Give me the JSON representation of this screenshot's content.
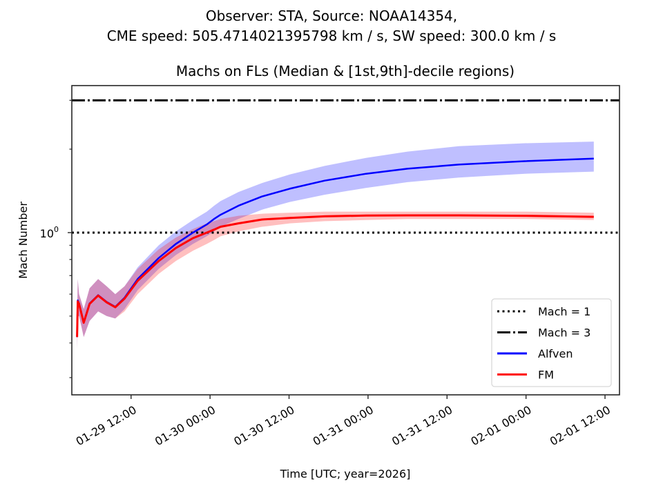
{
  "figure": {
    "suptitle_line1": "Observer: STA, Source: NOAA14354,",
    "suptitle_line2": "CME speed: 505.4714021395798 km / s, SW speed: 300.0 km / s"
  },
  "chart_data": {
    "type": "line",
    "title": "Machs on FLs (Median & [1st,9th]-decile regions)",
    "xlabel": "Time [UTC; year=2026]",
    "ylabel": "Mach Number",
    "yscale": "log",
    "x_unit": "hours since 2026-01-29 12:00",
    "xlim": [
      -9.0,
      74.2
    ],
    "ylim": [
      0.26,
      3.39
    ],
    "x_ticks": [
      {
        "value": 0,
        "label": "01-29 12:00"
      },
      {
        "value": 12,
        "label": "01-30 00:00"
      },
      {
        "value": 24,
        "label": "01-30 12:00"
      },
      {
        "value": 36,
        "label": "01-31 00:00"
      },
      {
        "value": 48,
        "label": "01-31 12:00"
      },
      {
        "value": 60,
        "label": "02-01 00:00"
      },
      {
        "value": 72,
        "label": "02-01 12:00"
      }
    ],
    "y_major_ticks": [
      {
        "value": 1,
        "label_base": "10",
        "label_exp": "0"
      }
    ],
    "y_minor_ticks": [
      0.3,
      0.4,
      0.5,
      0.6,
      0.7,
      0.8,
      0.9,
      2,
      3
    ],
    "reference_lines": [
      {
        "name": "Mach = 1",
        "value": 1,
        "style": "dotted",
        "color": "#000000"
      },
      {
        "name": "Mach = 3",
        "value": 3,
        "style": "dashdot",
        "color": "#000000"
      }
    ],
    "legend": {
      "position": "lower-right",
      "entries": [
        {
          "label": "Mach = 1",
          "style": "dotted",
          "color": "#000000"
        },
        {
          "label": "Mach = 3",
          "style": "dashdot",
          "color": "#000000"
        },
        {
          "label": "Alfven",
          "style": "solid",
          "color": "#0000ff"
        },
        {
          "label": "FM",
          "style": "solid",
          "color": "#ff0000"
        }
      ]
    },
    "x": [
      -8.2,
      -8.1,
      -7.9,
      -7.2,
      -6.3,
      -5.0,
      -3.7,
      -2.4,
      -1.0,
      1.0,
      4.2,
      6.8,
      9.4,
      11.5,
      12.6,
      13.6,
      16.3,
      19.9,
      24.1,
      29.4,
      35.7,
      42.0,
      49.8,
      59.8,
      70.3
    ],
    "series": [
      {
        "name": "Alfven",
        "color": "#0000ff",
        "band_color": "#0000ff",
        "band_alpha": 0.25,
        "median": [
          0.42,
          0.57,
          0.555,
          0.475,
          0.555,
          0.595,
          0.562,
          0.54,
          0.582,
          0.68,
          0.81,
          0.91,
          1.0,
          1.07,
          1.12,
          1.16,
          1.25,
          1.35,
          1.44,
          1.54,
          1.63,
          1.7,
          1.76,
          1.81,
          1.85
        ],
        "p10": [
          0.38,
          0.5,
          0.5,
          0.42,
          0.48,
          0.52,
          0.5,
          0.49,
          0.53,
          0.62,
          0.74,
          0.83,
          0.91,
          0.97,
          1.01,
          1.05,
          1.12,
          1.21,
          1.29,
          1.37,
          1.45,
          1.52,
          1.58,
          1.63,
          1.66
        ],
        "p90": [
          0.5,
          0.68,
          0.6,
          0.53,
          0.63,
          0.68,
          0.64,
          0.6,
          0.64,
          0.75,
          0.9,
          1.01,
          1.11,
          1.19,
          1.25,
          1.3,
          1.4,
          1.51,
          1.62,
          1.74,
          1.86,
          1.96,
          2.05,
          2.1,
          2.13
        ]
      },
      {
        "name": "FM",
        "color": "#ff0000",
        "band_color": "#ff0000",
        "band_alpha": 0.25,
        "median": [
          0.42,
          0.565,
          0.553,
          0.473,
          0.553,
          0.593,
          0.56,
          0.538,
          0.578,
          0.67,
          0.79,
          0.88,
          0.955,
          1.0,
          1.025,
          1.05,
          1.08,
          1.115,
          1.13,
          1.145,
          1.152,
          1.154,
          1.154,
          1.15,
          1.14
        ],
        "p10": [
          0.38,
          0.5,
          0.5,
          0.42,
          0.48,
          0.52,
          0.5,
          0.49,
          0.52,
          0.6,
          0.71,
          0.79,
          0.86,
          0.91,
          0.94,
          0.97,
          1.01,
          1.05,
          1.08,
          1.1,
          1.11,
          1.12,
          1.12,
          1.12,
          1.11
        ],
        "p90": [
          0.5,
          0.68,
          0.6,
          0.53,
          0.63,
          0.68,
          0.64,
          0.6,
          0.64,
          0.74,
          0.87,
          0.96,
          1.03,
          1.08,
          1.1,
          1.12,
          1.15,
          1.17,
          1.18,
          1.19,
          1.19,
          1.19,
          1.19,
          1.19,
          1.18
        ]
      }
    ]
  }
}
